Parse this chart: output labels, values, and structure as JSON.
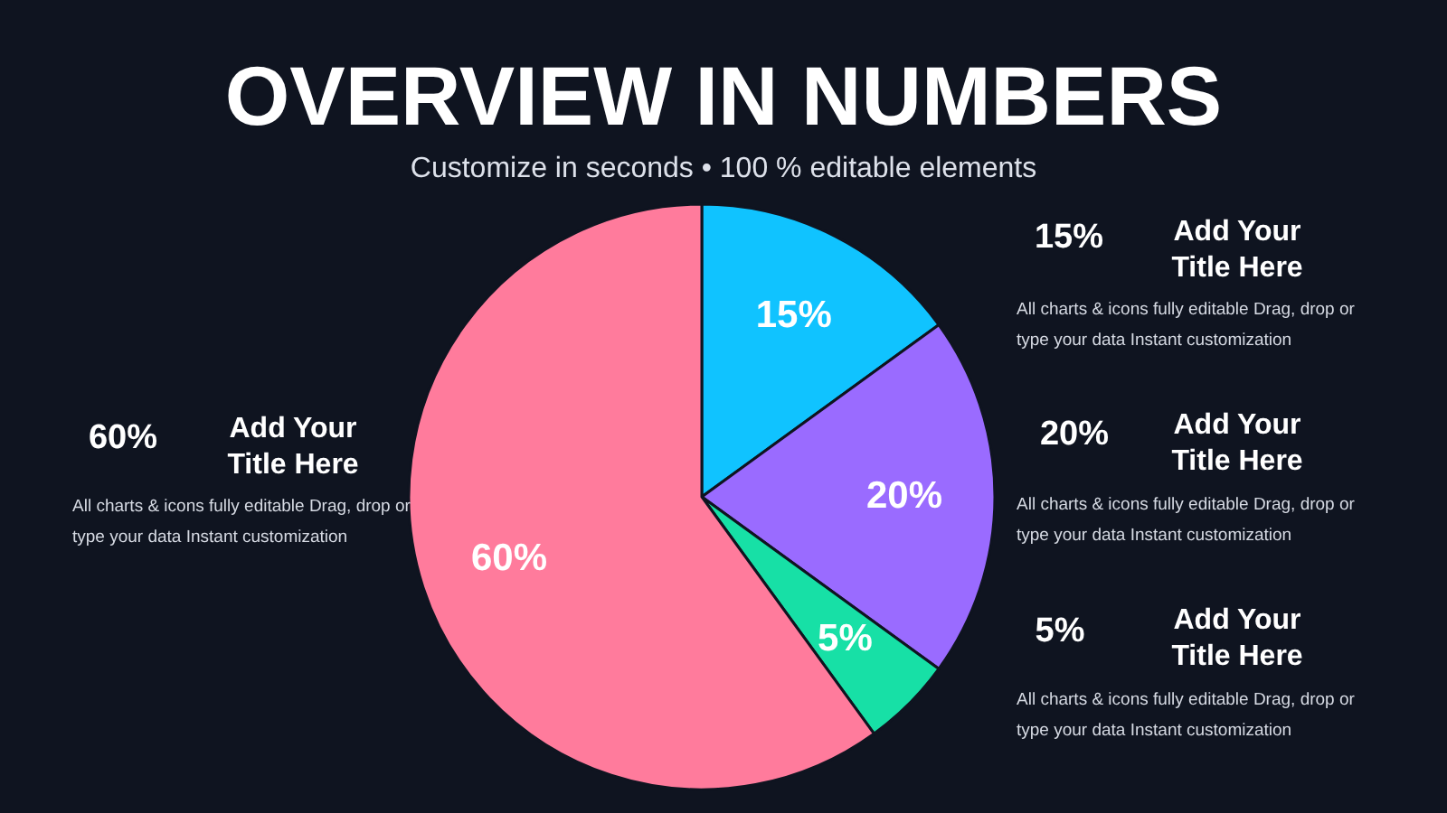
{
  "chart_data": {
    "type": "pie",
    "title": "OVERVIEW IN NUMBERS",
    "subtitle": "Customize in seconds • 100 % editable elements",
    "categories": [
      null,
      null,
      null,
      null
    ],
    "values": [
      15,
      20,
      5,
      60
    ],
    "colors": [
      "#10c3ff",
      "#9a6bff",
      "#17e0a6",
      "#ff7b9c"
    ],
    "value_labels": [
      "15%",
      "20%",
      "5%",
      "60%"
    ],
    "data_labels": true,
    "annotations": [
      "Add Your Title Here",
      "Add Your Title Here",
      "Add Your Title Here",
      "Add Your Title Here",
      "All charts & icons fully editable Drag, drop or type your data Instant customization",
      "All charts & icons fully editable Drag, drop or type your data Instant customization",
      "All charts & icons fully editable Drag, drop or type your data Instant customization",
      "All charts & icons fully editable Drag, drop or type your data Instant customization"
    ]
  }
}
